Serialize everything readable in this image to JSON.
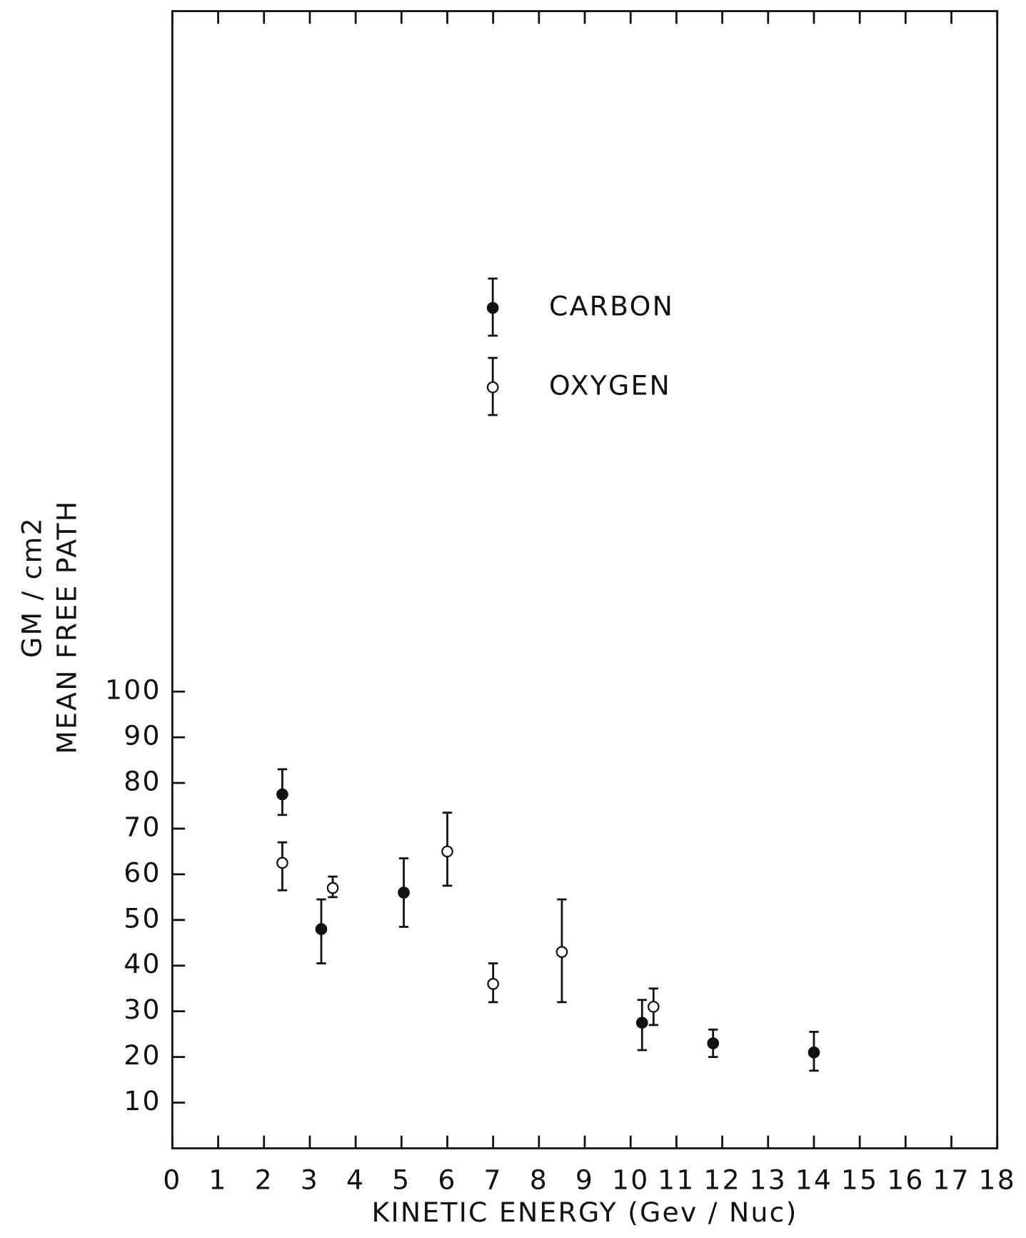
{
  "chart_data": {
    "type": "scatter",
    "x_label": "KINETIC ENERGY (Gev / Nuc)",
    "y_label": [
      "GM / cm2",
      "MEAN FREE PATH"
    ],
    "xlim": [
      0,
      18
    ],
    "ylim": [
      0,
      249
    ],
    "xticks": [
      0,
      1,
      2,
      3,
      4,
      5,
      6,
      7,
      8,
      9,
      10,
      11,
      12,
      13,
      14,
      15,
      16,
      17,
      18
    ],
    "yticks": [
      10,
      20,
      30,
      40,
      50,
      60,
      70,
      80,
      90,
      100
    ],
    "series": [
      {
        "name": "CARBON",
        "color": "#111111",
        "filled": true,
        "x": [
          2.4,
          3.25,
          5.05,
          10.25,
          11.8,
          14.0
        ],
        "values": [
          77.5,
          48,
          56,
          27.5,
          23,
          21
        ],
        "lower": [
          73,
          40.5,
          48.5,
          21.5,
          20,
          17
        ],
        "upper": [
          83,
          54.5,
          63.5,
          32.5,
          26,
          25.5
        ]
      },
      {
        "name": "OXYGEN",
        "color": "#111111",
        "filled": false,
        "x": [
          2.4,
          3.5,
          6.0,
          7.0,
          8.5,
          10.5
        ],
        "values": [
          62.5,
          57,
          65,
          36,
          43,
          31
        ],
        "lower": [
          56.5,
          55,
          57.5,
          32,
          32,
          27
        ],
        "upper": [
          67,
          59.5,
          73.5,
          40.5,
          54.5,
          35
        ]
      }
    ]
  }
}
